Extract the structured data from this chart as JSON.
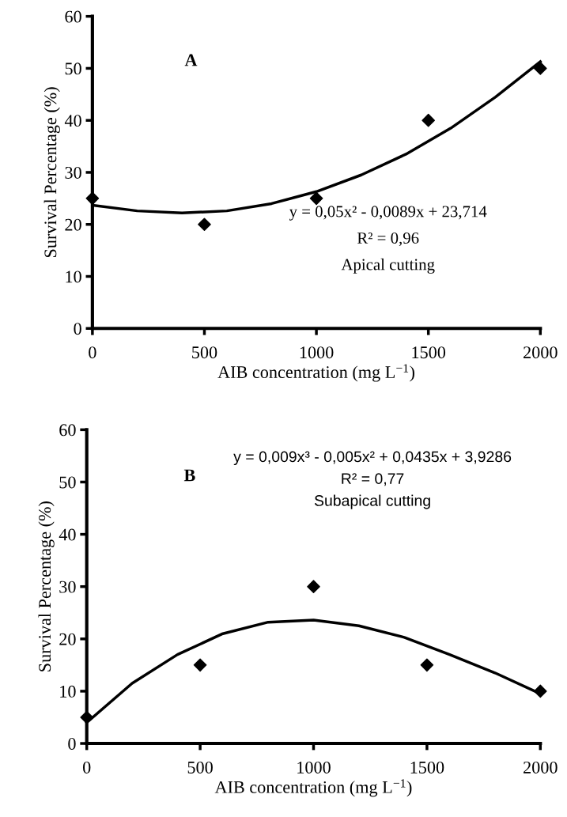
{
  "chart_data": [
    {
      "type": "scatter",
      "xlabel": "AIB concentration (mg L$^{−1}$)",
      "ylabel": "Survival Percentage (%)",
      "xlim": [
        0,
        2000
      ],
      "ylim": [
        0,
        60
      ],
      "xticks": [
        0,
        500,
        1000,
        1500,
        2000
      ],
      "yticks": [
        0,
        10,
        20,
        30,
        40,
        50,
        60
      ],
      "grid": false,
      "legend": false,
      "marker": "diamond",
      "annotations": [
        "A",
        "y = 0,05x² - 0,0089x + 23,714",
        "R² = 0,96",
        "Apical cutting"
      ],
      "series": [
        {
          "color": "#000000",
          "x": [
            0,
            500,
            1000,
            1500,
            2000
          ],
          "values": [
            25,
            20,
            25,
            40,
            50
          ]
        },
        {
          "type": "line",
          "color": "#000000",
          "marker": "none",
          "line_style": "solid",
          "x": [
            0,
            200,
            400,
            600,
            800,
            1000,
            1200,
            1400,
            1600,
            1800,
            2000
          ],
          "values": [
            23.7,
            22.6,
            22.2,
            22.6,
            24,
            26.3,
            29.5,
            33.5,
            38.5,
            44.5,
            51.3
          ]
        }
      ]
    },
    {
      "type": "scatter",
      "xlabel": "AIB concentration (mg L$^{−1}$)",
      "ylabel": "Survival Percentage (%)",
      "xlim": [
        0,
        2000
      ],
      "ylim": [
        0,
        60
      ],
      "xticks": [
        0,
        500,
        1000,
        1500,
        2000
      ],
      "yticks": [
        0,
        10,
        20,
        30,
        40,
        50,
        60
      ],
      "grid": false,
      "legend": false,
      "marker": "diamond",
      "annotations": [
        "B",
        "y = 0,009x³ - 0,005x² + 0,0435x + 3,9286",
        "R² = 0,77",
        "Subapical cutting"
      ],
      "series": [
        {
          "color": "#000000",
          "x": [
            0,
            500,
            1000,
            1500,
            2000
          ],
          "values": [
            5,
            15,
            30,
            15,
            10
          ]
        },
        {
          "type": "line",
          "color": "#000000",
          "marker": "none",
          "line_style": "solid",
          "x": [
            0,
            200,
            400,
            600,
            800,
            1000,
            1200,
            1400,
            1600,
            1800,
            2000
          ],
          "values": [
            4,
            11.5,
            17,
            21,
            23.2,
            23.6,
            22.5,
            20.3,
            17,
            13.5,
            9.5
          ]
        }
      ]
    }
  ]
}
